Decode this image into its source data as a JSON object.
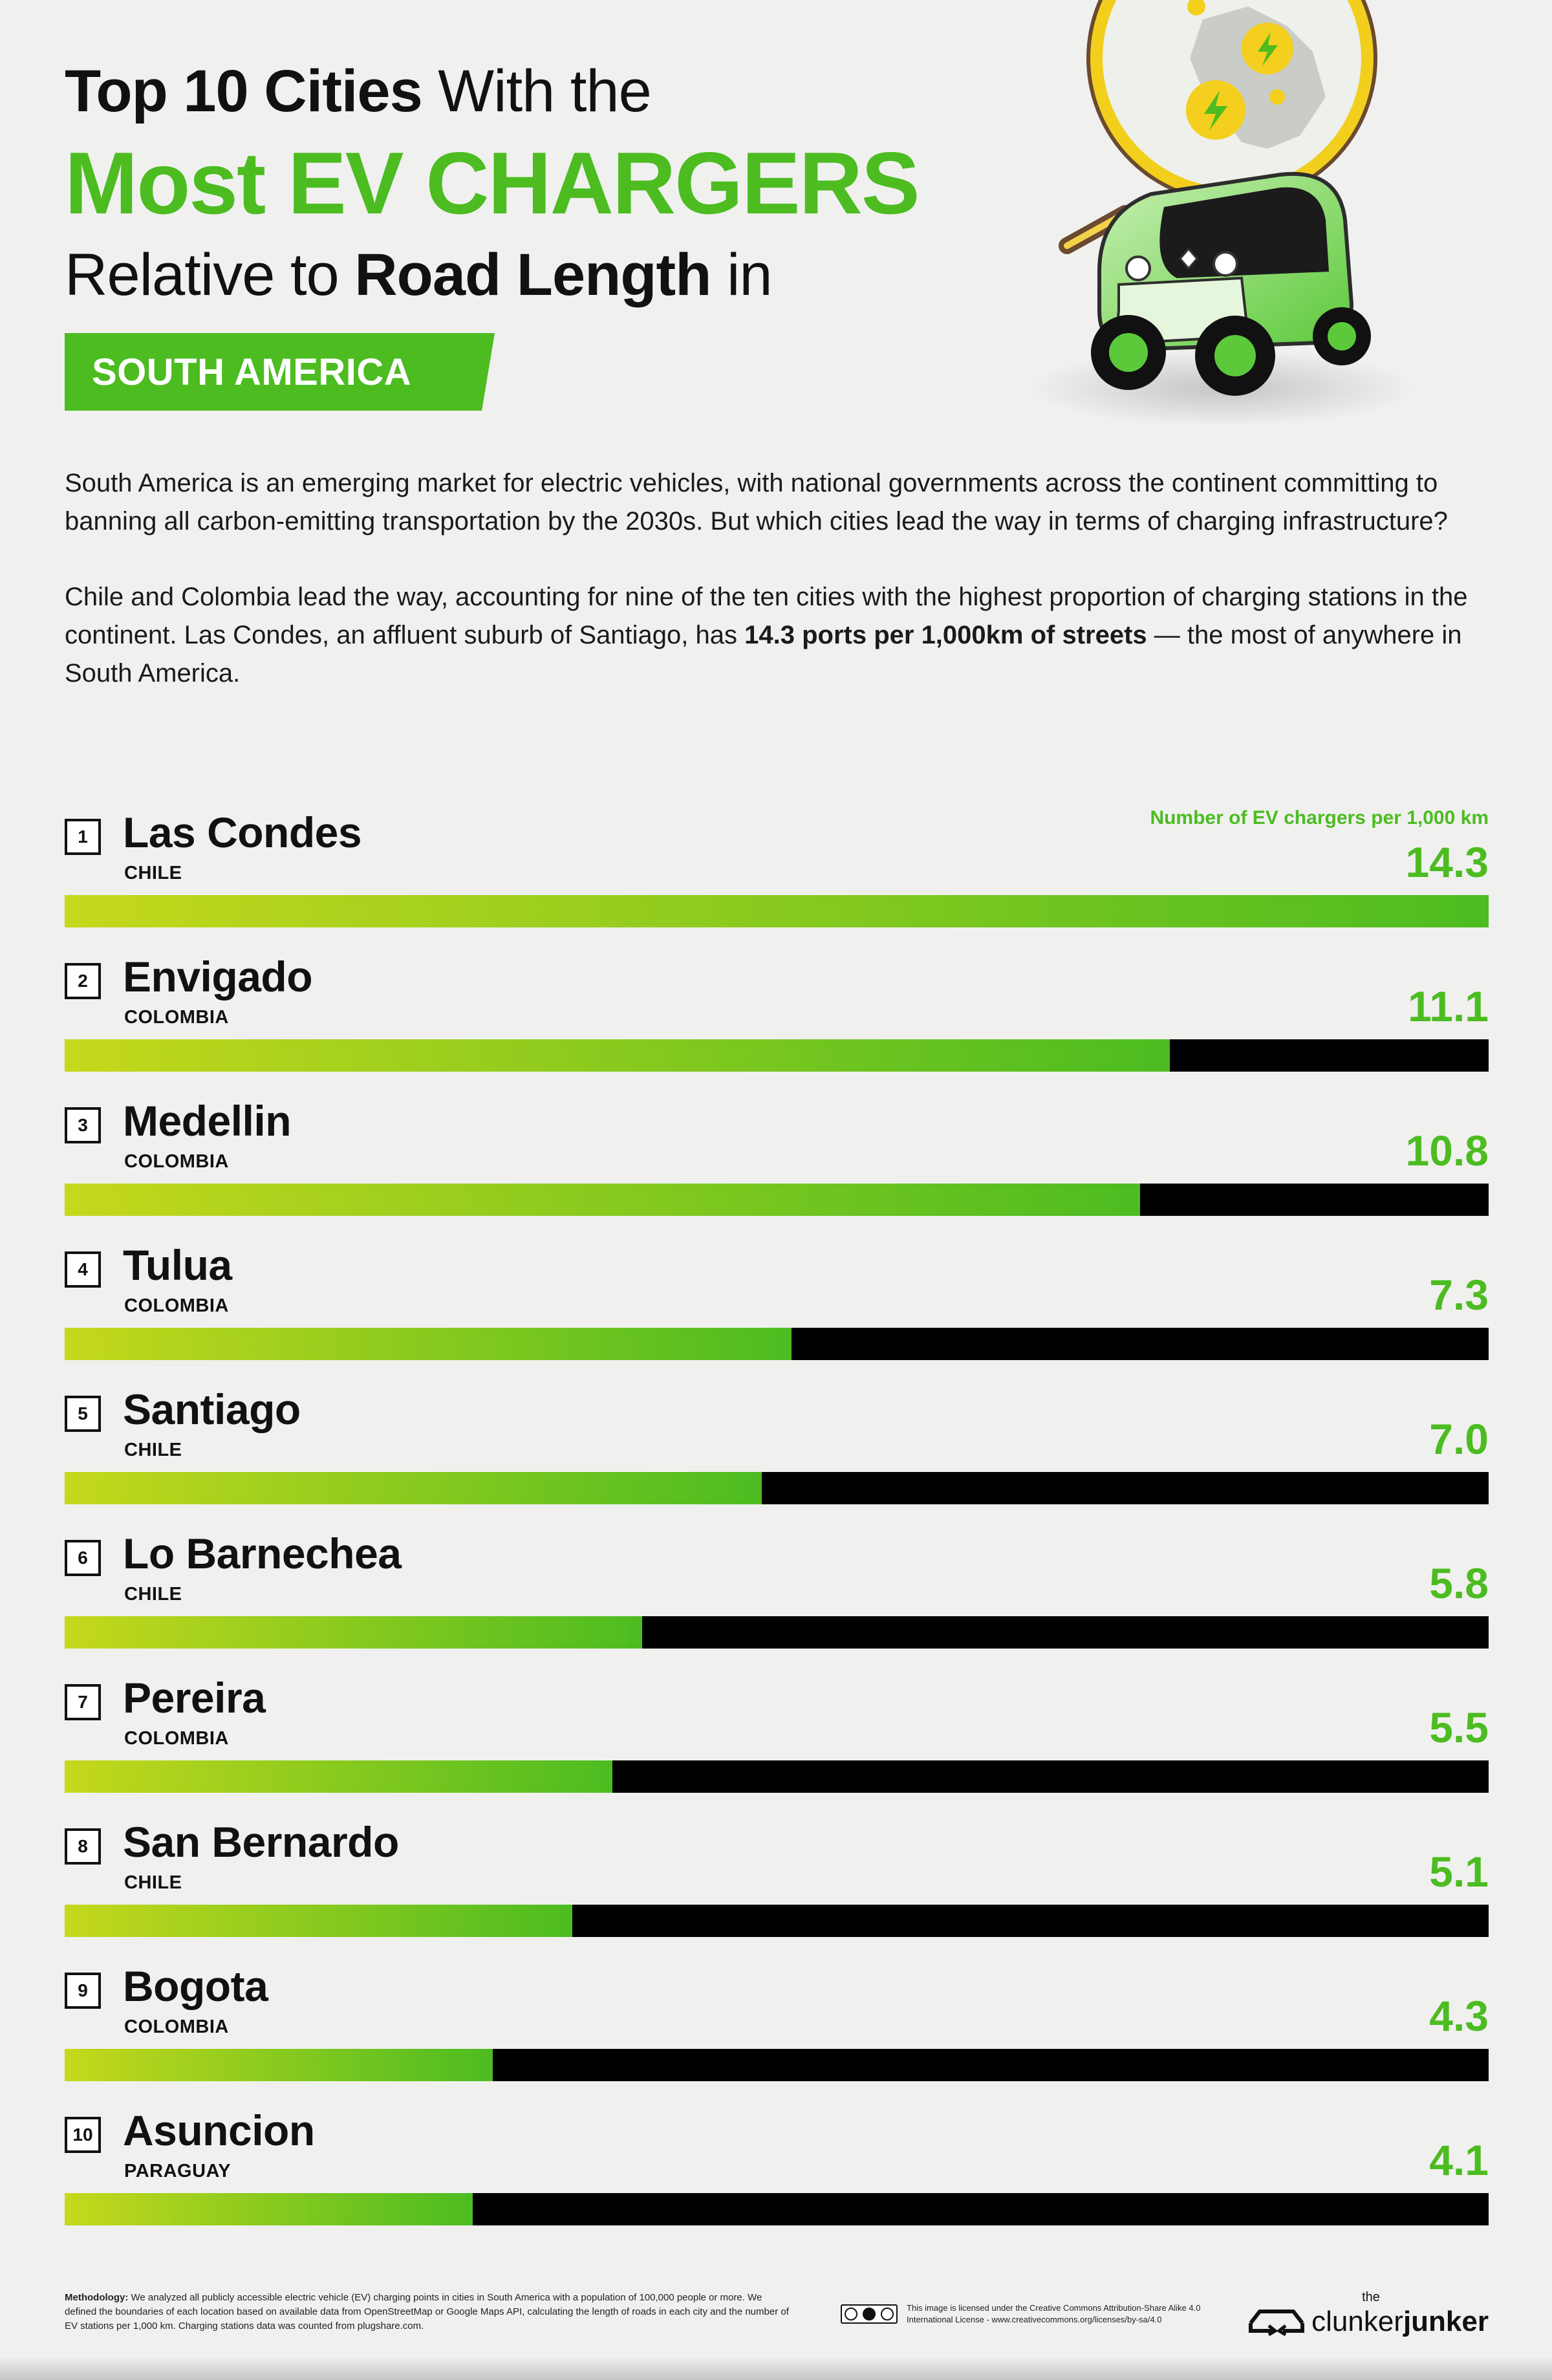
{
  "header": {
    "title_line1_bold": "Top 10 Cities",
    "title_line1_regular": " With the",
    "title_line2": "Most EV CHARGERS",
    "title_line3_regular": "Relative to ",
    "title_line3_bold": "Road Length",
    "title_line3_end": " in",
    "region": "SOUTH AMERICA"
  },
  "intro": {
    "paragraph1": "South America is an emerging market for electric vehicles, with national governments across the continent committing to banning all carbon-emitting transportation by the 2030s. But which cities lead the way in terms of charging infrastructure?",
    "paragraph2_start": "Chile and Colombia lead the way, accounting for nine of the ten cities with the highest proportion of charging stations in the continent. Las Condes, an affluent suburb of Santiago, has ",
    "paragraph2_bold": "14.3 ports per 1,000km of streets",
    "paragraph2_end": " — the most of anywhere in South America."
  },
  "chart_data": {
    "type": "bar",
    "title": "",
    "ylabel": "Number of EV chargers per 1,000 km",
    "ylim": [
      0,
      14.3
    ],
    "categories": [
      "Las Condes",
      "Envigado",
      "Medellin",
      "Tulua",
      "Santiago",
      "Lo Barnechea",
      "Pereira",
      "San Bernardo",
      "Bogota",
      "Asuncion"
    ],
    "values": [
      14.3,
      11.1,
      10.8,
      7.3,
      7.0,
      5.8,
      5.5,
      5.1,
      4.3,
      4.1
    ],
    "rows": [
      {
        "rank": "1",
        "city": "Las Condes",
        "country": "CHILE",
        "value": 14.3,
        "value_label": "14.3"
      },
      {
        "rank": "2",
        "city": "Envigado",
        "country": "COLOMBIA",
        "value": 11.1,
        "value_label": "11.1"
      },
      {
        "rank": "3",
        "city": "Medellin",
        "country": "COLOMBIA",
        "value": 10.8,
        "value_label": "10.8"
      },
      {
        "rank": "4",
        "city": "Tulua",
        "country": "COLOMBIA",
        "value": 7.3,
        "value_label": "7.3"
      },
      {
        "rank": "5",
        "city": "Santiago",
        "country": "CHILE",
        "value": 7.0,
        "value_label": "7.0"
      },
      {
        "rank": "6",
        "city": "Lo Barnechea",
        "country": "CHILE",
        "value": 5.8,
        "value_label": "5.8"
      },
      {
        "rank": "7",
        "city": "Pereira",
        "country": "COLOMBIA",
        "value": 5.5,
        "value_label": "5.5"
      },
      {
        "rank": "8",
        "city": "San Bernardo",
        "country": "CHILE",
        "value": 5.1,
        "value_label": "5.1"
      },
      {
        "rank": "9",
        "city": "Bogota",
        "country": "COLOMBIA",
        "value": 4.3,
        "value_label": "4.3"
      },
      {
        "rank": "10",
        "city": "Asuncion",
        "country": "PARAGUAY",
        "value": 4.1,
        "value_label": "4.1"
      }
    ],
    "colors": {
      "fill_start": "#c5d81c",
      "fill_end": "#4cbc21",
      "track": "#000000",
      "accent": "#4cbc21"
    },
    "grid": false,
    "legend": "top-right"
  },
  "footer": {
    "methodology_label": "Methodology:",
    "methodology_text": " We analyzed all publicly accessible electric vehicle (EV) charging points in cities in South America with a population of 100,000 people or more. We defined the boundaries of each location based on available data from OpenStreetMap or Google Maps API, calculating the length of roads in each city and the number of EV stations per 1,000 km. Charging stations data was counted from plugshare.com.",
    "license_text": "This image is licensed under the Creative Commons Attribution-Share Alike 4.0 International License - www.creativecommons.org/licenses/by-sa/4.0",
    "brand_the": "the",
    "brand_clunker": "clunker",
    "brand_junker": "junker"
  },
  "illustration": {
    "description_icon": "ev-car-with-map-magnifier-icon"
  }
}
